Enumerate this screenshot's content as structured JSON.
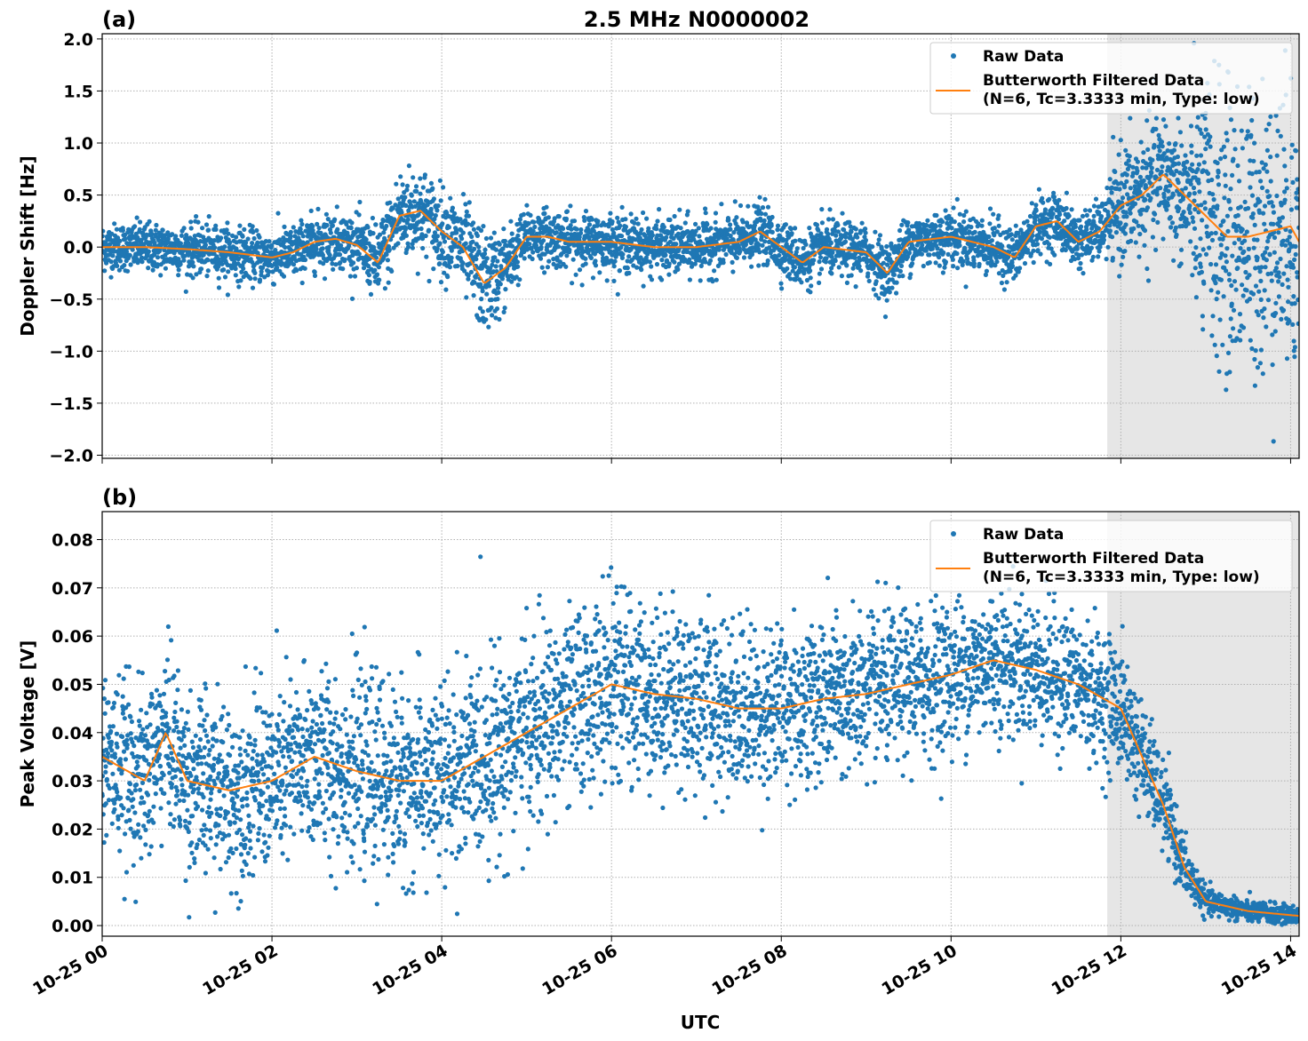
{
  "chart_data": [
    {
      "type": "scatter",
      "panel_label": "(a)",
      "title": "2.5 MHz N0000002",
      "xlabel": "",
      "ylabel": "Doppler Shift [Hz]",
      "xlim_hours": [
        0,
        14.1
      ],
      "ylim": [
        -2.03,
        2.05
      ],
      "yticks": [
        -2.0,
        -1.5,
        -1.0,
        -0.5,
        0.0,
        0.5,
        1.0,
        1.5,
        2.0
      ],
      "ytick_labels": [
        "−2.0",
        "−1.5",
        "−1.0",
        "−0.5",
        "0.0",
        "0.5",
        "1.0",
        "1.5",
        "2.0"
      ],
      "shaded_region_hours": [
        11.84,
        14.1
      ],
      "legend": {
        "placement": "top-right",
        "raw": "Raw Data",
        "filtered_line1": "Butterworth Filtered Data",
        "filtered_line2": "(N=6, Tc=3.3333 min, Type: low)"
      },
      "filtered": {
        "x": [
          0,
          0.5,
          1,
          1.5,
          2,
          2.25,
          2.5,
          2.75,
          3,
          3.25,
          3.5,
          3.75,
          4,
          4.25,
          4.5,
          4.75,
          5,
          5.25,
          5.5,
          6,
          6.5,
          7,
          7.5,
          7.75,
          8,
          8.25,
          8.5,
          9,
          9.25,
          9.5,
          10,
          10.25,
          10.5,
          10.75,
          11,
          11.25,
          11.5,
          11.75,
          12,
          12.25,
          12.5,
          12.75,
          13,
          13.25,
          13.5,
          13.75,
          14,
          14.1
        ],
        "y": [
          0,
          0,
          -0.02,
          -0.05,
          -0.1,
          -0.05,
          0.05,
          0.08,
          0.02,
          -0.15,
          0.3,
          0.35,
          0.15,
          0,
          -0.35,
          -0.2,
          0.1,
          0.1,
          0.05,
          0.05,
          0,
          0,
          0.05,
          0.15,
          0,
          -0.15,
          0,
          -0.05,
          -0.25,
          0.05,
          0.1,
          0.05,
          0,
          -0.1,
          0.2,
          0.25,
          0.05,
          0.15,
          0.4,
          0.5,
          0.7,
          0.5,
          0.3,
          0.1,
          0.1,
          0.15,
          0.2,
          0.05
        ]
      },
      "raw_spread": {
        "x": [
          0,
          3,
          3.5,
          4,
          4.5,
          5,
          11.8,
          12,
          12.8,
          13,
          14.1
        ],
        "sd": [
          0.1,
          0.12,
          0.2,
          0.18,
          0.22,
          0.12,
          0.12,
          0.25,
          0.3,
          0.6,
          0.6
        ]
      }
    },
    {
      "type": "scatter",
      "panel_label": "(b)",
      "xlabel": "UTC",
      "ylabel": "Peak Voltage [V]",
      "xlim_hours": [
        0,
        14.1
      ],
      "ylim": [
        -0.0022,
        0.0858
      ],
      "yticks": [
        0,
        0.01,
        0.02,
        0.03,
        0.04,
        0.05,
        0.06,
        0.07,
        0.08
      ],
      "ytick_labels": [
        "0.00",
        "0.01",
        "0.02",
        "0.03",
        "0.04",
        "0.05",
        "0.06",
        "0.07",
        "0.08"
      ],
      "xticks_hours": [
        0,
        2,
        4,
        6,
        8,
        10,
        12,
        14
      ],
      "xtick_labels": [
        "10-25 00",
        "10-25 02",
        "10-25 04",
        "10-25 06",
        "10-25 08",
        "10-25 10",
        "10-25 12",
        "10-25 14"
      ],
      "shaded_region_hours": [
        11.84,
        14.1
      ],
      "legend": {
        "placement": "top-right",
        "raw": "Raw Data",
        "filtered_line1": "Butterworth Filtered Data",
        "filtered_line2": "(N=6, Tc=3.3333 min, Type: low)"
      },
      "filtered": {
        "x": [
          0,
          0.5,
          0.75,
          1,
          1.5,
          2,
          2.5,
          3,
          3.5,
          4,
          4.5,
          5,
          5.5,
          6,
          6.5,
          7,
          7.5,
          8,
          8.5,
          9,
          9.5,
          10,
          10.5,
          11,
          11.5,
          12,
          12.25,
          12.5,
          12.75,
          13,
          13.5,
          14.1
        ],
        "y": [
          0.035,
          0.03,
          0.04,
          0.03,
          0.028,
          0.03,
          0.035,
          0.032,
          0.03,
          0.03,
          0.035,
          0.04,
          0.045,
          0.05,
          0.048,
          0.047,
          0.045,
          0.045,
          0.047,
          0.048,
          0.05,
          0.052,
          0.055,
          0.053,
          0.05,
          0.045,
          0.035,
          0.025,
          0.012,
          0.005,
          0.003,
          0.002
        ]
      },
      "raw_spread": {
        "x": [
          0,
          5,
          12,
          12.5,
          13,
          14.1
        ],
        "sd": [
          0.008,
          0.009,
          0.006,
          0.004,
          0.0012,
          0.0008
        ]
      }
    }
  ]
}
